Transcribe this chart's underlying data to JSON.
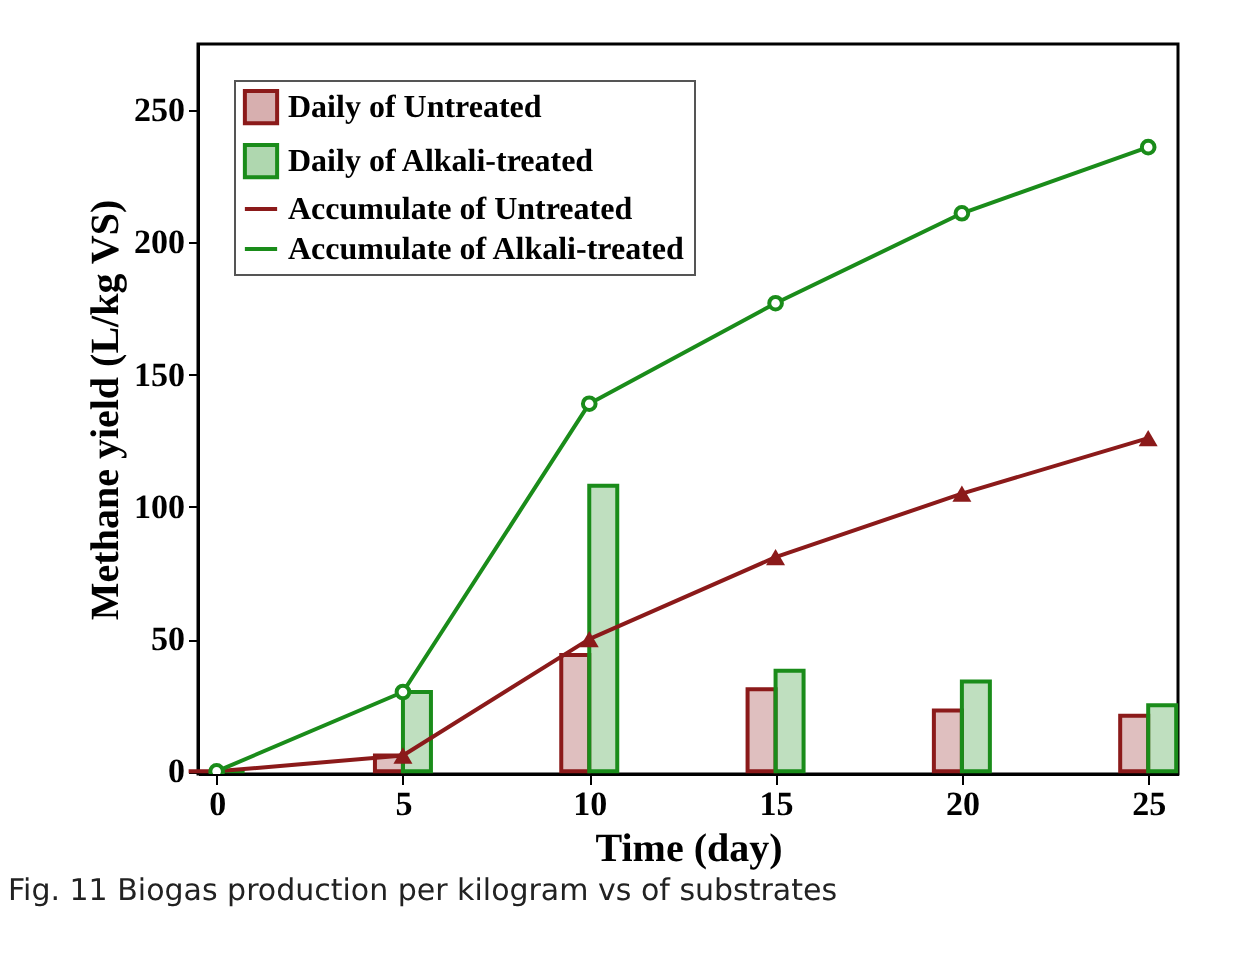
{
  "chart_data": {
    "type": "bar",
    "xlabel": "Time (day)",
    "ylabel": "Methane  yield (L/kg VS)",
    "annotations": [
      "Fig. 11  Biogas production per kilogram vs of substrates"
    ],
    "x": [
      0,
      5,
      10,
      15,
      20,
      25
    ],
    "xlim": [
      -0.5,
      25.8
    ],
    "xticks": [
      0,
      5,
      10,
      15,
      20,
      25
    ],
    "ylim": [
      -1,
      275
    ],
    "yticks": [
      0,
      50,
      100,
      150,
      200,
      250
    ],
    "legend": "top left",
    "grid": false,
    "series": [
      {
        "name": "Daily of Untreated",
        "color": "#8b1a1a",
        "values": [
          0,
          6,
          44,
          31,
          23,
          21
        ]
      },
      {
        "name": "Daily of Alkali-treated",
        "color": "#1a8c1a",
        "values": [
          0,
          30,
          108,
          38,
          34,
          25
        ]
      },
      {
        "name": "Accumulate of Untreated",
        "type": "line",
        "color": "#8b1a1a",
        "marker": "triangle",
        "values": [
          0,
          6,
          50,
          81,
          105,
          126
        ]
      },
      {
        "name": "Accumulate of Alkali-treated",
        "type": "line",
        "color": "#1a8c1a",
        "marker": "circle",
        "values": [
          0,
          30,
          139,
          177,
          211,
          236
        ]
      }
    ]
  }
}
